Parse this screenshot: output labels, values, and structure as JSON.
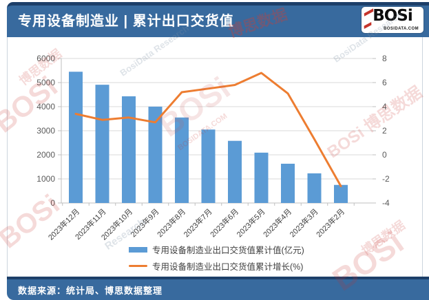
{
  "header": {
    "title": "专用设备制造业 | 累计出口交货值",
    "logo": {
      "brand": "BOSi",
      "domain": "BOSIDATA.COM"
    }
  },
  "footer": {
    "source": "数据来源：统计局、博思数据整理"
  },
  "colors": {
    "bar": "#5B9BD5",
    "line": "#ED7D31",
    "header_bg": "#386a9e",
    "accent_dark": "#1d3f69",
    "grid": "#d9d9d9",
    "axis_line": "#bfbfbf",
    "axis_text": "#595959"
  },
  "chart_data": {
    "type": "bar",
    "subtype": "bar+line-combo",
    "title": "专用设备制造业 | 累计出口交货值",
    "categories": [
      "2023年12月",
      "2023年11月",
      "2023年10月",
      "2023年9月",
      "2023年8月",
      "2023年7月",
      "2023年6月",
      "2023年5月",
      "2023年4月",
      "2023年3月",
      "2023年2月"
    ],
    "series": [
      {
        "name": "专用设备制造业出口交货值累计值(亿元)",
        "type": "bar",
        "axis": "left",
        "values": [
          5450,
          4910,
          4430,
          4000,
          3550,
          3050,
          2580,
          2090,
          1630,
          1230,
          750
        ]
      },
      {
        "name": "专用设备制造业出口交货值累计增长(%)",
        "type": "line",
        "axis": "right",
        "values": [
          3.4,
          2.9,
          3.1,
          2.7,
          5.2,
          5.5,
          5.8,
          6.8,
          5.1,
          1.3,
          -2.6
        ]
      }
    ],
    "left_axis": {
      "min": 0,
      "max": 6000,
      "step": 1000,
      "ticks": [
        "0",
        "1000",
        "2000",
        "3000",
        "4000",
        "5000",
        "6000"
      ]
    },
    "right_axis": {
      "min": -4,
      "max": 8,
      "step": 2,
      "ticks": [
        "-4",
        "-2",
        "0",
        "2",
        "4",
        "6",
        "8"
      ]
    },
    "grid": true,
    "legend_position": "bottom"
  },
  "watermarks": [
    "博思数据",
    "BosiData Research",
    "BOSi",
    "博思数据",
    "BOSi",
    "BOSIDATA.COM",
    "BOSi 博思数据",
    "BosiData Research",
    "BOSi",
    "Research",
    "BOSi",
    "博思数据"
  ]
}
